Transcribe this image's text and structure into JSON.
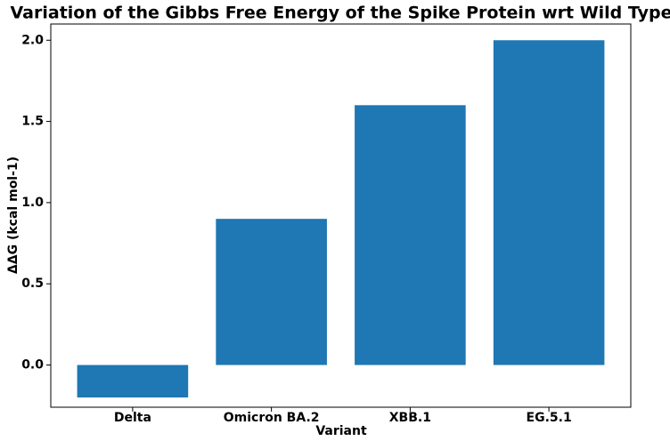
{
  "chart_data": {
    "type": "bar",
    "title": "Variation of the Gibbs Free Energy of the Spike Protein wrt Wild Type",
    "xlabel": "Variant",
    "ylabel": "ΔΔG (kcal mol-1)",
    "categories": [
      "Delta",
      "Omicron BA.2",
      "XBB.1",
      "EG.5.1"
    ],
    "values": [
      -0.2,
      0.9,
      1.6,
      2.0
    ],
    "color": "#1f77b4",
    "ylim": [
      -0.26,
      2.1
    ],
    "yticks": [
      {
        "value": 0,
        "label": "0.0"
      },
      0.5,
      {
        "value": 1,
        "label": "1.0"
      },
      1.5,
      {
        "value": 2,
        "label": "2.0"
      }
    ],
    "grid": false
  }
}
